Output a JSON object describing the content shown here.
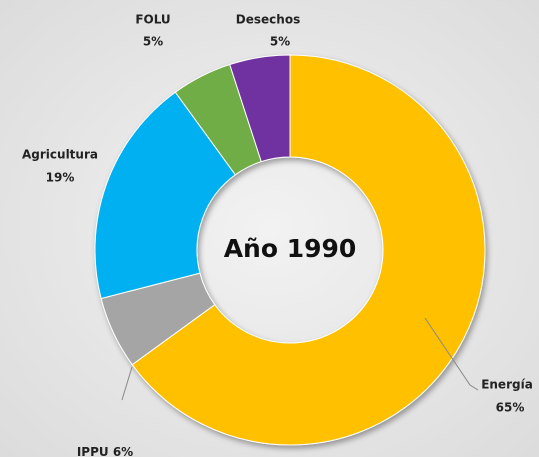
{
  "chart_data": {
    "type": "donut",
    "title": "Año 1990",
    "categories": [
      "Energía",
      "IPPU",
      "Agricultura",
      "FOLU",
      "Desechos"
    ],
    "values": [
      65,
      6,
      19,
      5,
      5
    ],
    "value_labels": [
      "65%",
      "6%",
      "19%",
      "5%",
      "5%"
    ],
    "colors": [
      "#ffc000",
      "#a5a5a5",
      "#00b0f0",
      "#70ad47",
      "#7030a0"
    ]
  }
}
